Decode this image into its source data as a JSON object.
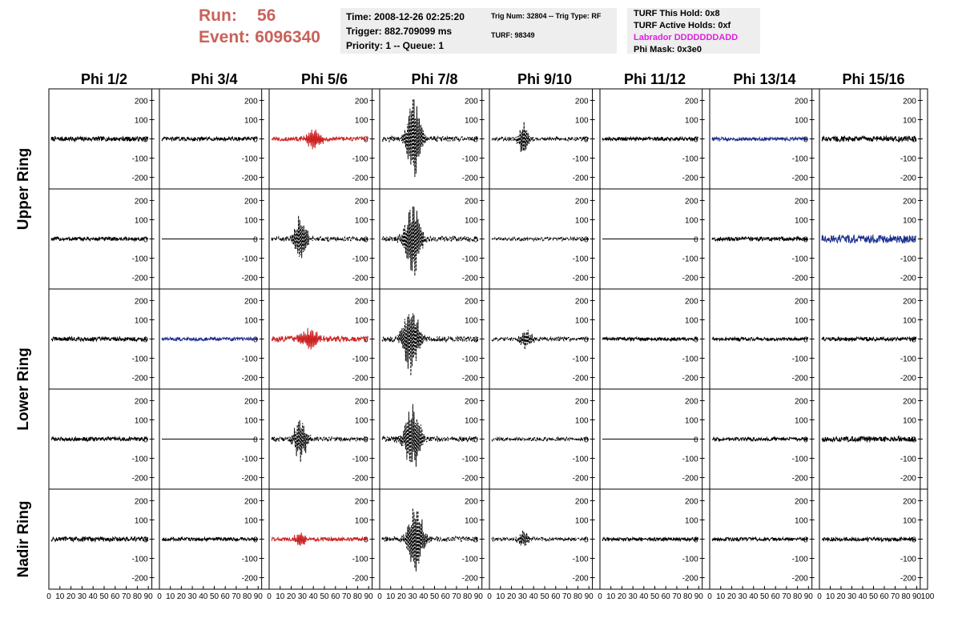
{
  "header": {
    "run_label": "Run:",
    "run_value": "56",
    "event_label": "Event:",
    "event_value": "6096340"
  },
  "info_time": {
    "line1": "Time: 2008-12-26 02:25:20",
    "line2": "Trigger: 882.709099 ms",
    "line3": "Priority: 1 -- Queue: 1"
  },
  "info_trig": {
    "line1": "Trig Num: 32804 -- Trig Type: RF",
    "line2": "TURF: 98349"
  },
  "info_turf": {
    "line1": "TURF This Hold: 0x8",
    "line2": "TURF Active Holds: 0xf",
    "line3": "Labrador DDDDDDDADD",
    "line4": "Phi Mask: 0x3e0"
  },
  "colors": {
    "header_red": "#c8625a",
    "labrador_magenta": "#e020e0",
    "info_bg": "#eeeeee",
    "trace_black": "#000000",
    "trace_red": "#cc2222",
    "trace_blue": "#1a2d8c"
  },
  "chart_data": {
    "type": "line",
    "columns": [
      "Phi 1/2",
      "Phi 3/4",
      "Phi 5/6",
      "Phi 7/8",
      "Phi 9/10",
      "Phi 11/12",
      "Phi 13/14",
      "Phi 15/16"
    ],
    "rows": [
      "Upper Ring",
      "Upper Ring",
      "Lower Ring",
      "Lower Ring",
      "Nadir Ring"
    ],
    "row_labels": [
      {
        "text": "Upper Ring",
        "rows": [
          0,
          1
        ]
      },
      {
        "text": "Lower Ring",
        "rows": [
          2,
          3
        ]
      },
      {
        "text": "Nadir Ring",
        "rows": [
          4
        ]
      }
    ],
    "ylim": [
      -260,
      260
    ],
    "yticks": [
      200,
      100,
      0,
      -100,
      -200
    ],
    "xlim": [
      0,
      100
    ],
    "xticks": [
      0,
      10,
      20,
      30,
      40,
      50,
      60,
      70,
      80,
      90,
      100
    ],
    "panels": [
      {
        "row": 0,
        "col": 0,
        "color": "black",
        "amp": 12,
        "pulse": null
      },
      {
        "row": 0,
        "col": 1,
        "color": "black",
        "amp": 10,
        "pulse": null
      },
      {
        "row": 0,
        "col": 2,
        "color": "red",
        "amp": 11,
        "pulse": {
          "center": 44,
          "width": 9,
          "amp": 55
        }
      },
      {
        "row": 0,
        "col": 3,
        "color": "black",
        "dashed": true,
        "amp": 14,
        "pulse": {
          "center": 33,
          "width": 8,
          "amp": 230
        }
      },
      {
        "row": 0,
        "col": 4,
        "color": "black",
        "dashed": true,
        "amp": 10,
        "pulse": {
          "center": 33,
          "width": 6,
          "amp": 85
        }
      },
      {
        "row": 0,
        "col": 5,
        "color": "black",
        "amp": 9,
        "pulse": null
      },
      {
        "row": 0,
        "col": 6,
        "color": "blue",
        "amp": 9,
        "pulse": null
      },
      {
        "row": 0,
        "col": 7,
        "color": "black",
        "amp": 14,
        "pulse": null
      },
      {
        "row": 1,
        "col": 0,
        "color": "black",
        "amp": 10,
        "pulse": null
      },
      {
        "row": 1,
        "col": 1,
        "color": "black",
        "amp": 0,
        "flat": true,
        "pulse": null
      },
      {
        "row": 1,
        "col": 2,
        "color": "black",
        "dashed": true,
        "amp": 12,
        "pulse": {
          "center": 30,
          "width": 7,
          "amp": 125
        }
      },
      {
        "row": 1,
        "col": 3,
        "color": "black",
        "dashed": true,
        "amp": 14,
        "pulse": {
          "center": 32,
          "width": 9,
          "amp": 210
        }
      },
      {
        "row": 1,
        "col": 4,
        "color": "black",
        "dashed": true,
        "amp": 9,
        "pulse": null
      },
      {
        "row": 1,
        "col": 5,
        "color": "black",
        "amp": 0,
        "flat": true,
        "pulse": null
      },
      {
        "row": 1,
        "col": 6,
        "color": "black",
        "amp": 11,
        "pulse": null
      },
      {
        "row": 1,
        "col": 7,
        "color": "blue",
        "amp": 22,
        "pulse": null
      },
      {
        "row": 2,
        "col": 0,
        "color": "black",
        "amp": 11,
        "pulse": null
      },
      {
        "row": 2,
        "col": 1,
        "color": "blue",
        "amp": 9,
        "pulse": null
      },
      {
        "row": 2,
        "col": 2,
        "color": "red",
        "amp": 14,
        "pulse": {
          "center": 40,
          "width": 10,
          "amp": 60
        }
      },
      {
        "row": 2,
        "col": 3,
        "color": "black",
        "dashed": true,
        "amp": 14,
        "pulse": {
          "center": 30,
          "width": 9,
          "amp": 200
        }
      },
      {
        "row": 2,
        "col": 4,
        "color": "black",
        "dashed": true,
        "amp": 10,
        "pulse": {
          "center": 35,
          "width": 7,
          "amp": 50
        }
      },
      {
        "row": 2,
        "col": 5,
        "color": "black",
        "amp": 9,
        "pulse": null
      },
      {
        "row": 2,
        "col": 6,
        "color": "black",
        "amp": 9,
        "pulse": null
      },
      {
        "row": 2,
        "col": 7,
        "color": "black",
        "amp": 10,
        "pulse": null
      },
      {
        "row": 3,
        "col": 0,
        "color": "black",
        "amp": 10,
        "pulse": null
      },
      {
        "row": 3,
        "col": 1,
        "color": "black",
        "amp": 0,
        "flat": true,
        "pulse": null
      },
      {
        "row": 3,
        "col": 2,
        "color": "black",
        "dashed": true,
        "amp": 12,
        "pulse": {
          "center": 30,
          "width": 7,
          "amp": 125
        }
      },
      {
        "row": 3,
        "col": 3,
        "color": "black",
        "dashed": true,
        "amp": 14,
        "pulse": {
          "center": 32,
          "width": 9,
          "amp": 185
        }
      },
      {
        "row": 3,
        "col": 4,
        "color": "black",
        "dashed": true,
        "amp": 9,
        "pulse": null
      },
      {
        "row": 3,
        "col": 5,
        "color": "black",
        "amp": 0,
        "flat": true,
        "pulse": null
      },
      {
        "row": 3,
        "col": 6,
        "color": "black",
        "amp": 9,
        "pulse": null
      },
      {
        "row": 3,
        "col": 7,
        "color": "black",
        "amp": 13,
        "pulse": null
      },
      {
        "row": 4,
        "col": 0,
        "color": "black",
        "amp": 12,
        "pulse": null
      },
      {
        "row": 4,
        "col": 1,
        "color": "black",
        "amp": 9,
        "pulse": null
      },
      {
        "row": 4,
        "col": 2,
        "color": "red",
        "amp": 10,
        "pulse": {
          "center": 30,
          "width": 6,
          "amp": 45
        }
      },
      {
        "row": 4,
        "col": 3,
        "color": "black",
        "dashed": true,
        "amp": 13,
        "pulse": {
          "center": 35,
          "width": 8,
          "amp": 210
        }
      },
      {
        "row": 4,
        "col": 4,
        "color": "black",
        "dashed": true,
        "amp": 9,
        "pulse": {
          "center": 33,
          "width": 6,
          "amp": 50
        }
      },
      {
        "row": 4,
        "col": 5,
        "color": "black",
        "amp": 9,
        "pulse": null
      },
      {
        "row": 4,
        "col": 6,
        "color": "black",
        "amp": 9,
        "pulse": null
      },
      {
        "row": 4,
        "col": 7,
        "color": "black",
        "amp": 10,
        "pulse": null
      }
    ]
  }
}
